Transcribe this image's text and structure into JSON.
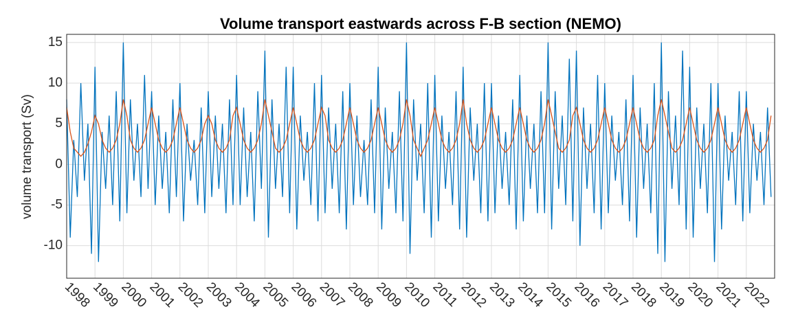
{
  "chart_data": {
    "type": "line",
    "title": "Volume transport eastwards across F-B section (NEMO)",
    "y_label": "volume transport (Sv)",
    "grid": true,
    "xlim": [
      1998,
      2023
    ],
    "xticks": [
      1998,
      1999,
      2000,
      2001,
      2002,
      2003,
      2004,
      2005,
      2006,
      2007,
      2008,
      2009,
      2010,
      2011,
      2012,
      2013,
      2014,
      2015,
      2016,
      2017,
      2018,
      2019,
      2020,
      2021,
      2022
    ],
    "ylim": [
      -14,
      16
    ],
    "yticks": [
      -10,
      -5,
      0,
      5,
      10,
      15
    ],
    "x": [
      1998,
      1998.125,
      1998.25,
      1998.375,
      1998.5,
      1998.625,
      1998.75,
      1998.875,
      1999,
      1999.125,
      1999.25,
      1999.375,
      1999.5,
      1999.625,
      1999.75,
      1999.875,
      2000,
      2000.125,
      2000.25,
      2000.375,
      2000.5,
      2000.625,
      2000.75,
      2000.875,
      2001,
      2001.125,
      2001.25,
      2001.375,
      2001.5,
      2001.625,
      2001.75,
      2001.875,
      2002,
      2002.125,
      2002.25,
      2002.375,
      2002.5,
      2002.625,
      2002.75,
      2002.875,
      2003,
      2003.125,
      2003.25,
      2003.375,
      2003.5,
      2003.625,
      2003.75,
      2003.875,
      2004,
      2004.125,
      2004.25,
      2004.375,
      2004.5,
      2004.625,
      2004.75,
      2004.875,
      2005,
      2005.125,
      2005.25,
      2005.375,
      2005.5,
      2005.625,
      2005.75,
      2005.875,
      2006,
      2006.125,
      2006.25,
      2006.375,
      2006.5,
      2006.625,
      2006.75,
      2006.875,
      2007,
      2007.125,
      2007.25,
      2007.375,
      2007.5,
      2007.625,
      2007.75,
      2007.875,
      2008,
      2008.125,
      2008.25,
      2008.375,
      2008.5,
      2008.625,
      2008.75,
      2008.875,
      2009,
      2009.125,
      2009.25,
      2009.375,
      2009.5,
      2009.625,
      2009.75,
      2009.875,
      2010,
      2010.125,
      2010.25,
      2010.375,
      2010.5,
      2010.625,
      2010.75,
      2010.875,
      2011,
      2011.125,
      2011.25,
      2011.375,
      2011.5,
      2011.625,
      2011.75,
      2011.875,
      2012,
      2012.125,
      2012.25,
      2012.375,
      2012.5,
      2012.625,
      2012.75,
      2012.875,
      2013,
      2013.125,
      2013.25,
      2013.375,
      2013.5,
      2013.625,
      2013.75,
      2013.875,
      2014,
      2014.125,
      2014.25,
      2014.375,
      2014.5,
      2014.625,
      2014.75,
      2014.875,
      2015,
      2015.125,
      2015.25,
      2015.375,
      2015.5,
      2015.625,
      2015.75,
      2015.875,
      2016,
      2016.125,
      2016.25,
      2016.375,
      2016.5,
      2016.625,
      2016.75,
      2016.875,
      2017,
      2017.125,
      2017.25,
      2017.375,
      2017.5,
      2017.625,
      2017.75,
      2017.875,
      2018,
      2018.125,
      2018.25,
      2018.375,
      2018.5,
      2018.625,
      2018.75,
      2018.875,
      2019,
      2019.125,
      2019.25,
      2019.375,
      2019.5,
      2019.625,
      2019.75,
      2019.875,
      2020,
      2020.125,
      2020.25,
      2020.375,
      2020.5,
      2020.625,
      2020.75,
      2020.875,
      2021,
      2021.125,
      2021.25,
      2021.375,
      2021.5,
      2021.625,
      2021.75,
      2021.875,
      2022,
      2022.125,
      2022.25,
      2022.375,
      2022.5,
      2022.625,
      2022.75,
      2022.875
    ],
    "series": [
      {
        "color": "#0072bd",
        "values": [
          8,
          -9,
          3,
          -4,
          10,
          -2,
          5,
          -11,
          12,
          -12,
          4,
          -3,
          6,
          -5,
          9,
          -7,
          15,
          -6,
          8,
          -2,
          5,
          -4,
          11,
          -3,
          9,
          -5,
          6,
          -3,
          4,
          -6,
          8,
          -4,
          10,
          -7,
          5,
          -2,
          3,
          -5,
          7,
          -6,
          9,
          -4,
          6,
          -3,
          5,
          -6,
          8,
          -5,
          11,
          -5,
          7,
          -4,
          4,
          -7,
          9,
          -3,
          14,
          -9,
          8,
          -3,
          5,
          -4,
          12,
          -6,
          12,
          -8,
          6,
          -2,
          4,
          -5,
          10,
          -7,
          11,
          -6,
          7,
          -3,
          5,
          -6,
          9,
          -8,
          10,
          -5,
          6,
          -4,
          3,
          -5,
          8,
          -6,
          12,
          -8,
          7,
          -3,
          4,
          -6,
          9,
          -7,
          15,
          -11,
          8,
          -2,
          5,
          -6,
          10,
          -9,
          11,
          -7,
          6,
          -3,
          4,
          -5,
          9,
          -8,
          12,
          -9,
          7,
          -2,
          5,
          -6,
          10,
          -7,
          10,
          -6,
          6,
          -3,
          4,
          -5,
          8,
          -8,
          11,
          -7,
          6,
          -3,
          5,
          -6,
          9,
          -6,
          15,
          -8,
          9,
          -3,
          6,
          -5,
          13,
          -7,
          14,
          -10,
          7,
          -3,
          5,
          -6,
          11,
          -8,
          10,
          -6,
          6,
          -2,
          4,
          -5,
          8,
          -7,
          11,
          -9,
          7,
          -3,
          5,
          -6,
          10,
          -11,
          15,
          -12,
          9,
          -3,
          6,
          -5,
          14,
          -8,
          12,
          -9,
          7,
          -3,
          5,
          -6,
          10,
          -12,
          10,
          -8,
          6,
          -2,
          4,
          -5,
          9,
          -7,
          9,
          -6,
          5,
          -2,
          4,
          -5,
          7,
          -4
        ]
      },
      {
        "color": "#d95319",
        "values": [
          7,
          4,
          2,
          1.5,
          1,
          1.5,
          2.5,
          4,
          6,
          5,
          3,
          2,
          1.5,
          2,
          3,
          5,
          8,
          6,
          3,
          2,
          1.5,
          2,
          3,
          5,
          7,
          5,
          3,
          2,
          1.5,
          2,
          3,
          5,
          7,
          5,
          3,
          2,
          1.5,
          2,
          3,
          5,
          6,
          5,
          3,
          2,
          1.5,
          2,
          3,
          6,
          7,
          5,
          3,
          2,
          1.5,
          2,
          3,
          5,
          8,
          6,
          4,
          2,
          1.5,
          2,
          3,
          5,
          7,
          5,
          3,
          2,
          1.5,
          2,
          3,
          5,
          7,
          6,
          3,
          2,
          1.5,
          2,
          3,
          5,
          7,
          5,
          3,
          2,
          1.5,
          2,
          3,
          5,
          7,
          5,
          3,
          2,
          1.5,
          2,
          3,
          5,
          8,
          6,
          3,
          2,
          1,
          2,
          3,
          5,
          7,
          5,
          3,
          2,
          1.5,
          2,
          3,
          5,
          8,
          5,
          3,
          2,
          1.5,
          2,
          3,
          5,
          7,
          5,
          3,
          2,
          1.5,
          2,
          3,
          5,
          7,
          5,
          3,
          2,
          1.5,
          2,
          3,
          5,
          8,
          6,
          4,
          2,
          1.5,
          2,
          3,
          6,
          7,
          5,
          3,
          2,
          1.5,
          2,
          3,
          5,
          7,
          5,
          3,
          2,
          1.5,
          2,
          3,
          5,
          7,
          5,
          3,
          2,
          1.5,
          2,
          3,
          6,
          8,
          6,
          4,
          2,
          1.5,
          2,
          3,
          5,
          7,
          5,
          3,
          2,
          1.5,
          2,
          3,
          5,
          7,
          5,
          3,
          2,
          1.5,
          2,
          3,
          5,
          7,
          5,
          3,
          2,
          1.5,
          2,
          3,
          6
        ]
      }
    ]
  }
}
